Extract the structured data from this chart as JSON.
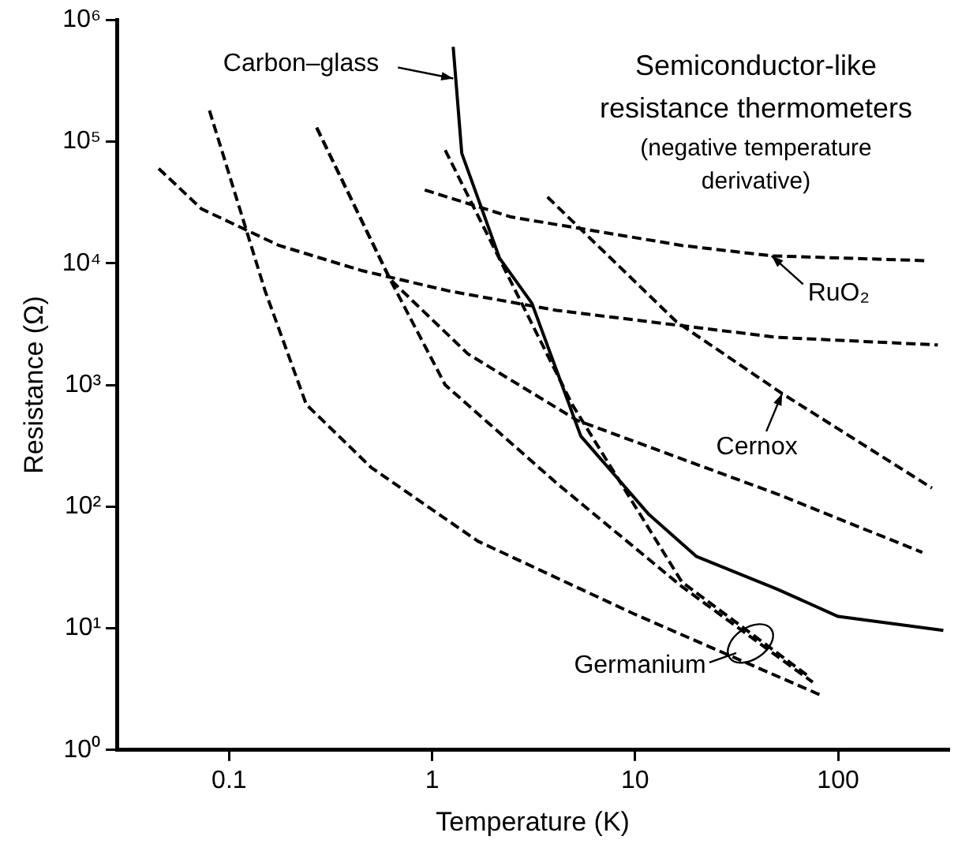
{
  "chart_data": {
    "type": "line",
    "title": "Semiconductor-like resistance thermometers",
    "subtitle": "(negative temperature derivative)",
    "xlabel": "Temperature (K)",
    "ylabel": "Resistance (Ω)",
    "log": "xy",
    "grid": false,
    "legend": false,
    "marker": "none",
    "xlim": [
      0.028,
      350
    ],
    "ylim": [
      1,
      1000000
    ],
    "xticks": [
      0.1,
      1,
      10,
      100
    ],
    "yticks": [
      {
        "value": 1,
        "label": "10⁰"
      },
      {
        "value": 10,
        "label": "10¹"
      },
      {
        "value": 100,
        "label": "10²"
      },
      {
        "value": 1000,
        "label": "10³"
      },
      {
        "value": 10000,
        "label": "10⁴"
      },
      {
        "value": 100000,
        "label": "10⁵"
      },
      {
        "value": 1000000,
        "label": "10⁶"
      }
    ],
    "series": [
      {
        "color": "#000000",
        "line_style": "solid",
        "x": [
          1.27,
          1.4,
          2.15,
          3.1,
          5.4,
          11.7,
          20,
          50,
          100,
          330
        ],
        "values": [
          600000,
          80000,
          11000,
          4700,
          380,
          86,
          39,
          21,
          12.5,
          9.6
        ]
      },
      {
        "color": "#000000",
        "line_style": "dashed",
        "x": [
          0.92,
          2.45,
          17,
          47,
          270
        ],
        "values": [
          40000,
          24000,
          14000,
          11500,
          10500
        ]
      },
      {
        "color": "#000000",
        "line_style": "dashed",
        "x": [
          0.045,
          0.073,
          0.176,
          0.45,
          1.22,
          4.1,
          50,
          310
        ],
        "values": [
          60000,
          28000,
          14000,
          8700,
          5900,
          4100,
          2460,
          2130
        ]
      },
      {
        "color": "#000000",
        "line_style": "dashed",
        "x": [
          3.7,
          16,
          53,
          290
        ],
        "values": [
          35000,
          3300,
          850,
          142
        ]
      },
      {
        "color": "#000000",
        "line_style": "dashed",
        "x": [
          0.27,
          0.62,
          1.5,
          5.2,
          50,
          260
        ],
        "values": [
          130000,
          7400,
          1800,
          510,
          127,
          42
        ]
      },
      {
        "color": "#000000",
        "line_style": "dashed",
        "x": [
          0.08,
          0.15,
          0.24,
          0.5,
          1.68,
          10,
          83
        ],
        "values": [
          180000,
          6000,
          690,
          210,
          52,
          13,
          2.8
        ]
      },
      {
        "color": "#000000",
        "line_style": "dashed",
        "x": [
          0.27,
          0.62,
          1.16,
          4.1,
          17,
          75
        ],
        "values": [
          130000,
          7400,
          1000,
          156,
          22,
          3.6
        ]
      },
      {
        "color": "#000000",
        "line_style": "dashed",
        "x": [
          1.16,
          4.9,
          17,
          72
        ],
        "values": [
          85000,
          690,
          24,
          4
        ]
      }
    ],
    "annotations": [
      {
        "text": "Carbon–glass",
        "x": 1.27,
        "y": 330000
      },
      {
        "text": "RuO₂",
        "x": 47,
        "y": 11500
      },
      {
        "text": "Cernox",
        "x": 53,
        "y": 850
      },
      {
        "text": "Germanium",
        "x": 37,
        "y": 7.5
      }
    ]
  }
}
